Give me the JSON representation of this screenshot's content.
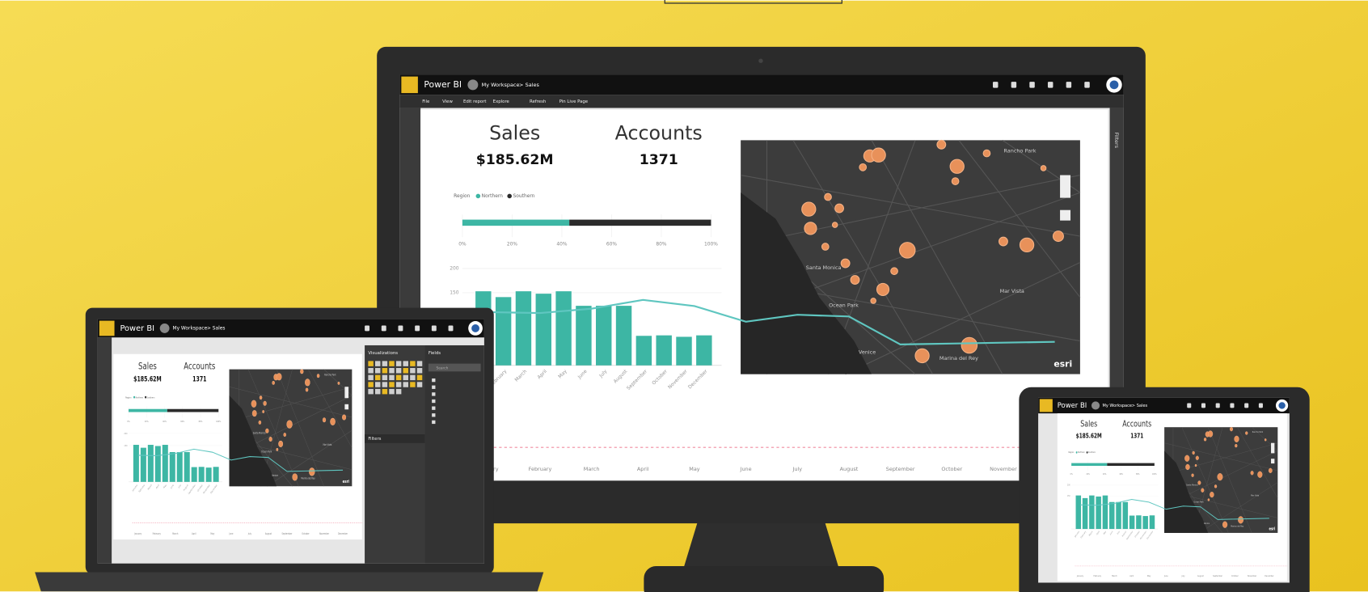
{
  "app": {
    "name": "Power BI",
    "workspace": "My Workspace",
    "separator": ">",
    "report": "Sales"
  },
  "menu": [
    "File",
    "View",
    "Edit report",
    "Explore",
    "Refresh",
    "Pin Live Page"
  ],
  "side_tab": "Filters",
  "panels": {
    "visualizations": "Visualizations",
    "fields": "Fields",
    "filters": "Filters",
    "search": "Search"
  },
  "cards": [
    {
      "label": "Sales",
      "value": "$185.62M"
    },
    {
      "label": "Accounts",
      "value": "1371"
    }
  ],
  "map": {
    "places": [
      "Santa Monica",
      "Ocean Park",
      "Venice",
      "Marina del Rey",
      "Mar Vista",
      "Rancho Park"
    ],
    "brand": "esri"
  },
  "chart_data": [
    {
      "type": "stacked-bar-h",
      "legend_title": "Region",
      "series": [
        {
          "name": "Northern",
          "color": "#3db6a4",
          "values": [
            43
          ]
        },
        {
          "name": "Southern",
          "color": "#2b2b2b",
          "values": [
            57
          ]
        }
      ],
      "xlim": [
        0,
        100
      ],
      "xticks": [
        {
          "value": 0,
          "label": "0%"
        },
        {
          "value": 20,
          "label": "20%"
        },
        {
          "value": 40,
          "label": "40%"
        },
        {
          "value": 60,
          "label": "60%"
        },
        {
          "value": 80,
          "label": "80%"
        },
        {
          "value": 100,
          "label": "100%"
        }
      ]
    },
    {
      "type": "bar",
      "categories": [
        "January",
        "February",
        "March",
        "April",
        "May",
        "June",
        "July",
        "August",
        "September",
        "October",
        "November",
        "December"
      ],
      "values": [
        153,
        141,
        153,
        148,
        153,
        123,
        123,
        123,
        61,
        62,
        59,
        62
      ],
      "color": "#3db6a4",
      "ylim": [
        0,
        200
      ],
      "yticks": [
        150,
        200
      ],
      "grid": true
    }
  ]
}
